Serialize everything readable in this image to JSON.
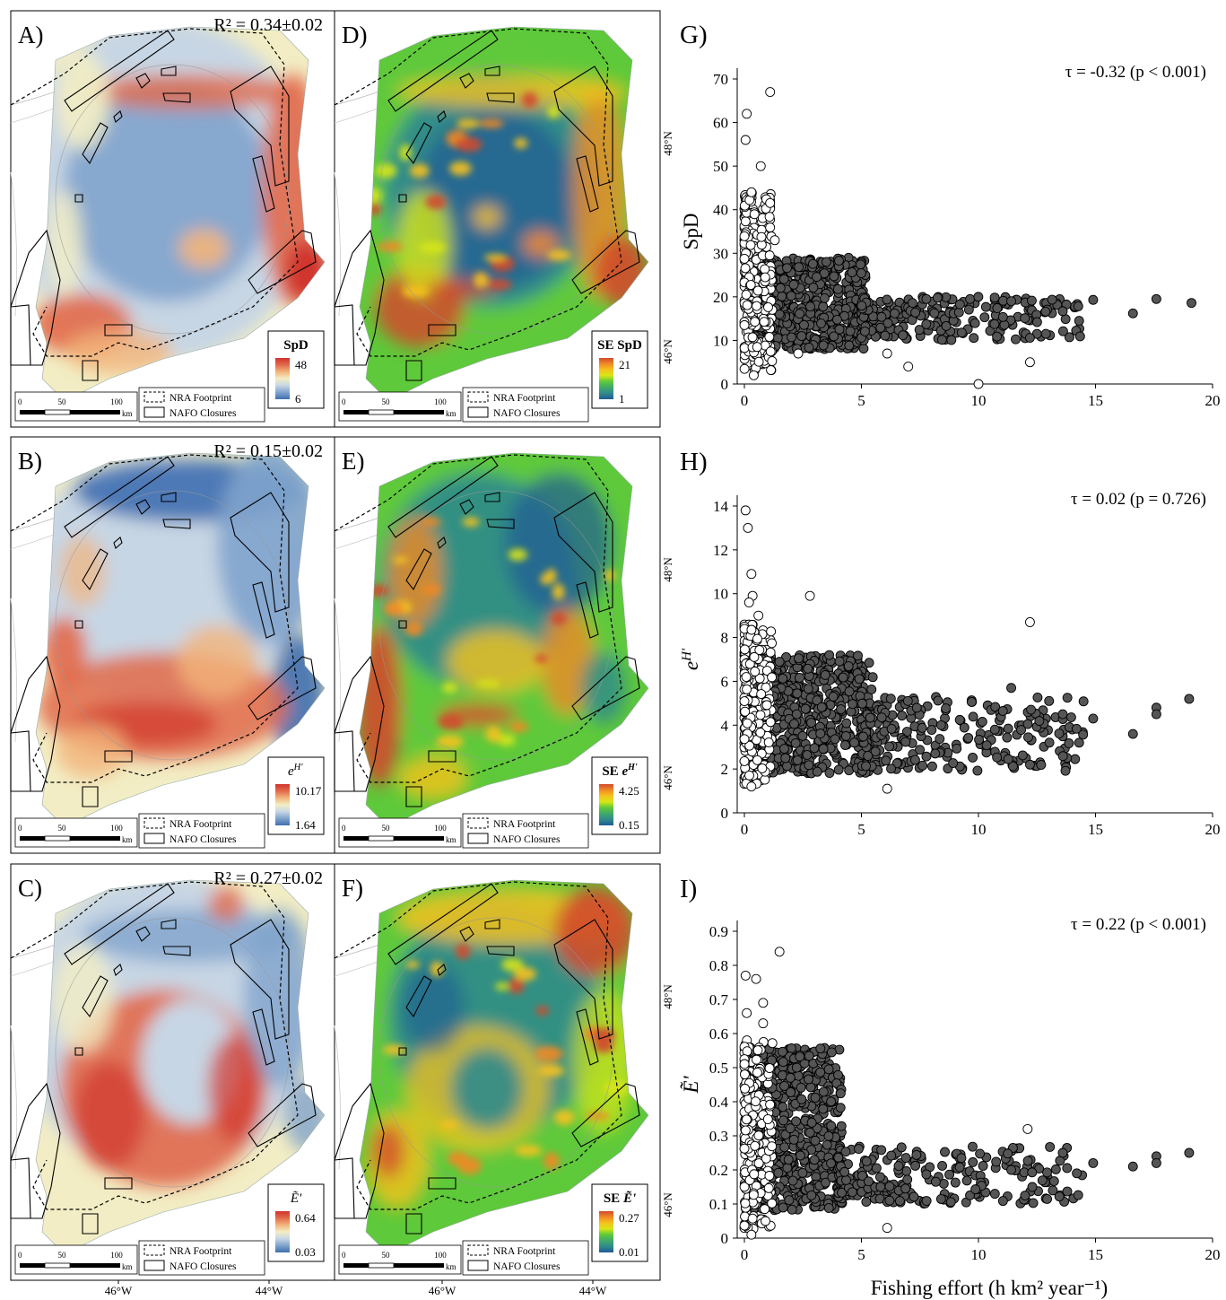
{
  "maps": [
    {
      "panel": "A)",
      "r2": "R² = 0.34±0.02",
      "legend_title": "SpD",
      "legend_max": "48",
      "legend_min": "6",
      "scheme": "div",
      "variant": 0
    },
    {
      "panel": "B)",
      "r2": "R² = 0.15±0.02",
      "legend_title": "e^H'",
      "legend_max": "10.17",
      "legend_min": "1.64",
      "scheme": "div",
      "variant": 1
    },
    {
      "panel": "C)",
      "r2": "R² = 0.27±0.02",
      "legend_title": "Ẽ'",
      "legend_max": "0.64",
      "legend_min": "0.03",
      "scheme": "div",
      "variant": 2
    },
    {
      "panel": "D)",
      "r2": "",
      "legend_title": "SE SpD",
      "legend_max": "21",
      "legend_min": "1",
      "scheme": "seq",
      "variant": 0
    },
    {
      "panel": "E)",
      "r2": "",
      "legend_title": "SE e^H'",
      "legend_max": "4.25",
      "legend_min": "0.15",
      "scheme": "seq",
      "variant": 1
    },
    {
      "panel": "F)",
      "r2": "",
      "legend_title": "SE Ẽ'",
      "legend_max": "0.27",
      "legend_min": "0.01",
      "scheme": "seq",
      "variant": 2
    }
  ],
  "map_common": {
    "legend_nra": "NRA Footprint",
    "legend_nafo": "NAFO Closures",
    "scale_ticks": [
      "0",
      "50",
      "100"
    ],
    "scale_unit": "km",
    "lon_labels": [
      "46°W",
      "44°W"
    ],
    "lat_labels": [
      "48°N",
      "46°N"
    ]
  },
  "colors": {
    "div": [
      "#3f6fb0",
      "#7fa3cc",
      "#c7d6e4",
      "#f2edc4",
      "#f2b47a",
      "#e26a4a",
      "#d0342e"
    ],
    "seq": [
      "#215a96",
      "#2f8a8c",
      "#40a96a",
      "#5ec93a",
      "#d6e616",
      "#f6c21c",
      "#f08a26",
      "#d24a2c"
    ],
    "point_fill_dark": "#555555",
    "point_fill_light": "#ffffff",
    "point_stroke": "#000000"
  },
  "chart_data": [
    {
      "type": "scatter",
      "panel": "G)",
      "annotation": "τ = -0.32 (p < 0.001)",
      "ylabel": "SpD",
      "xlabel": "",
      "xlim": [
        0,
        20
      ],
      "ylim": [
        0,
        70
      ],
      "xticks": [
        "0",
        "5",
        "10",
        "15",
        "20"
      ],
      "yticks": [
        "0",
        "10",
        "20",
        "30",
        "40",
        "50",
        "60",
        "70"
      ],
      "outliers": [
        [
          0.1,
          62
        ],
        [
          0.05,
          56
        ],
        [
          1.1,
          67
        ],
        [
          0.7,
          50
        ],
        [
          0.3,
          44
        ],
        [
          10,
          0
        ],
        [
          12.2,
          5
        ],
        [
          7,
          4
        ],
        [
          6.1,
          7
        ],
        [
          0.4,
          2
        ],
        [
          1.3,
          33
        ],
        [
          2.3,
          7
        ]
      ],
      "extremes": [
        [
          19.1,
          18.6
        ],
        [
          17.6,
          19.5
        ],
        [
          16.6,
          16.2
        ],
        [
          14.9,
          19.3
        ],
        [
          14.3,
          14.5
        ],
        [
          13.6,
          16.7
        ],
        [
          12.5,
          11.5
        ],
        [
          12.2,
          10.6
        ],
        [
          11.4,
          19
        ],
        [
          10.8,
          17.4
        ]
      ],
      "cloud": {
        "light_xmax": 1.2,
        "light_y": [
          3,
          44
        ],
        "dense_x": [
          0.2,
          5.2
        ],
        "dense_y": [
          8,
          29
        ],
        "tail_x": [
          5,
          14.5
        ],
        "tail_y": [
          10,
          20
        ],
        "n_light": 260,
        "n_dense": 700,
        "n_tail": 240
      }
    },
    {
      "type": "scatter",
      "panel": "H)",
      "annotation": "τ = 0.02 (p = 0.726)",
      "ylabel": "e^H'",
      "xlabel": "",
      "xlim": [
        0,
        20
      ],
      "ylim": [
        0,
        14
      ],
      "xticks": [
        "0",
        "5",
        "10",
        "15",
        "20"
      ],
      "yticks": [
        "0",
        "2",
        "4",
        "6",
        "8",
        "10",
        "12",
        "14"
      ],
      "outliers": [
        [
          0.05,
          13.8
        ],
        [
          0.15,
          13
        ],
        [
          0.3,
          10.9
        ],
        [
          0.35,
          9.9
        ],
        [
          0.2,
          9.6
        ],
        [
          0.6,
          9
        ],
        [
          2.8,
          9.9
        ],
        [
          12.2,
          8.7
        ],
        [
          6.1,
          1.1
        ],
        [
          0.3,
          1.2
        ]
      ],
      "extremes": [
        [
          19,
          5.2
        ],
        [
          17.6,
          4.8
        ],
        [
          17.6,
          4.5
        ],
        [
          16.6,
          3.6
        ],
        [
          14.9,
          4.3
        ],
        [
          14.3,
          3.2
        ],
        [
          13.6,
          4.5
        ],
        [
          12.2,
          2.2
        ],
        [
          11.4,
          5.7
        ],
        [
          10.7,
          3.8
        ]
      ],
      "cloud": {
        "light_xmax": 1.2,
        "light_y": [
          1.3,
          8.6
        ],
        "dense_x": [
          0.2,
          5.5
        ],
        "dense_y": [
          1.8,
          7.2
        ],
        "tail_x": [
          5,
          14.5
        ],
        "tail_y": [
          1.9,
          5.3
        ],
        "n_light": 260,
        "n_dense": 700,
        "n_tail": 240
      }
    },
    {
      "type": "scatter",
      "panel": "I)",
      "annotation": "τ = 0.22 (p < 0.001)",
      "ylabel": "Ẽ'",
      "xlabel": "Fishing effort (h km² year⁻¹)",
      "xlim": [
        0,
        20
      ],
      "ylim": [
        0,
        0.9
      ],
      "xticks": [
        "0",
        "5",
        "10",
        "15",
        "20"
      ],
      "yticks": [
        "0",
        "0.1",
        "0.2",
        "0.3",
        "0.4",
        "0.5",
        "0.6",
        "0.7",
        "0.8",
        "0.9"
      ],
      "outliers": [
        [
          1.5,
          0.84
        ],
        [
          0.05,
          0.77
        ],
        [
          0.5,
          0.76
        ],
        [
          0.8,
          0.69
        ],
        [
          0.1,
          0.66
        ],
        [
          0.8,
          0.63
        ],
        [
          12.1,
          0.32
        ],
        [
          6.1,
          0.03
        ],
        [
          0.9,
          0.05
        ],
        [
          0.3,
          0.01
        ]
      ],
      "extremes": [
        [
          19,
          0.25
        ],
        [
          17.6,
          0.24
        ],
        [
          17.6,
          0.22
        ],
        [
          16.6,
          0.21
        ],
        [
          14.9,
          0.22
        ],
        [
          14.2,
          0.19
        ],
        [
          13.6,
          0.25
        ],
        [
          12.3,
          0.15
        ],
        [
          11.4,
          0.2
        ],
        [
          10.7,
          0.13
        ]
      ],
      "cloud": {
        "light_xmax": 1.2,
        "light_y": [
          0.02,
          0.58
        ],
        "dense_x": [
          0.2,
          4.2
        ],
        "dense_y": [
          0.08,
          0.56
        ],
        "tail_x": [
          4,
          14.5
        ],
        "tail_y": [
          0.1,
          0.27
        ],
        "n_light": 260,
        "n_dense": 700,
        "n_tail": 240
      }
    }
  ]
}
